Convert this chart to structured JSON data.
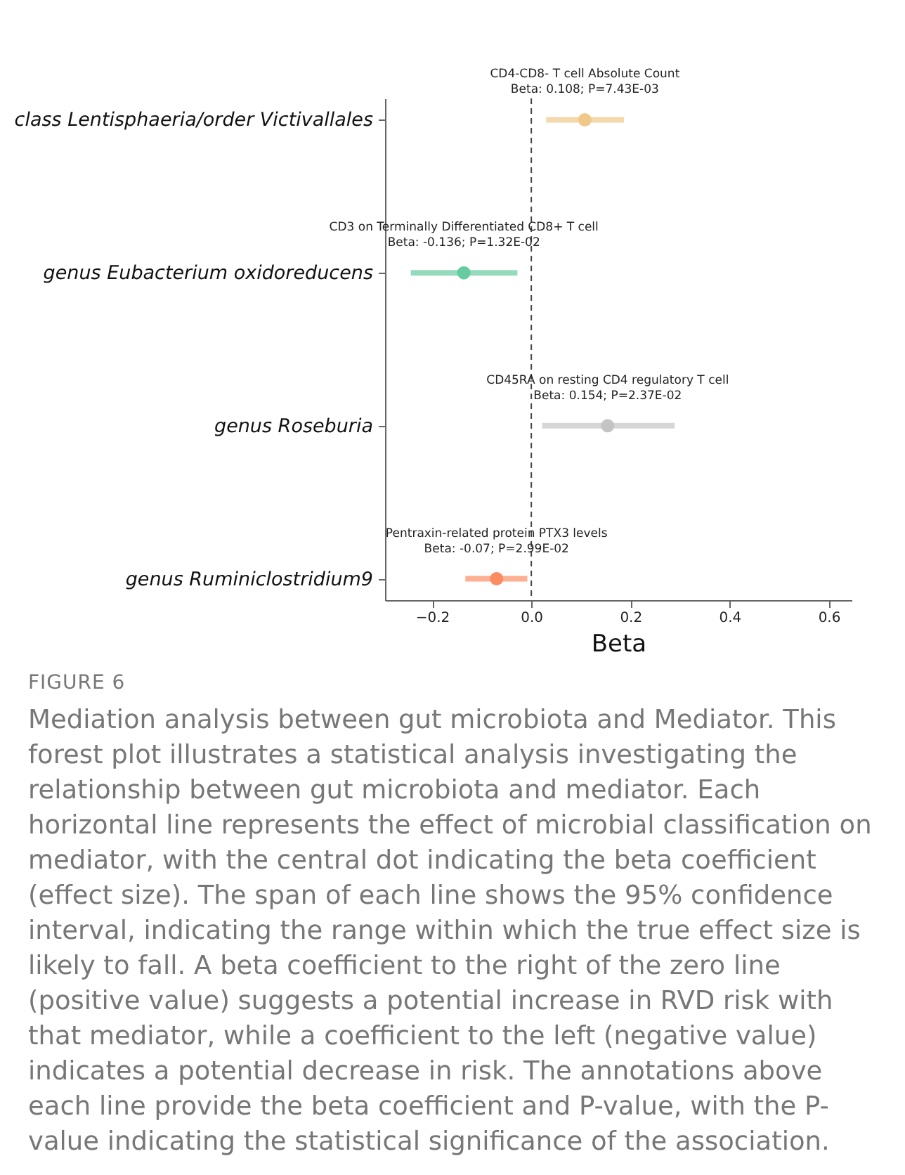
{
  "chart_data": {
    "type": "scatter",
    "categories": [
      "class Lentisphaeria/order Victivallales",
      "genus Eubacterium oxidoreducens",
      "genus Roseburia",
      "genus Ruminiclostridium9"
    ],
    "values": [
      0.108,
      -0.136,
      0.154,
      -0.07
    ],
    "errors": [
      [
        0.03,
        0.187
      ],
      [
        -0.243,
        -0.028
      ],
      [
        0.022,
        0.289
      ],
      [
        -0.133,
        -0.008
      ]
    ],
    "colors": [
      "#f0c98a",
      "#66cc9f",
      "#c4c4c4",
      "#fc8d62"
    ],
    "orientation": "horizontal",
    "xlabel": "Beta",
    "xlim": [
      -0.295,
      0.646
    ],
    "xticks": [
      {
        "value": -0.2,
        "label": "−0.2"
      },
      {
        "value": 0,
        "label": "0.0"
      },
      {
        "value": 0.2,
        "label": "0.2"
      },
      {
        "value": 0.4,
        "label": "0.4"
      },
      {
        "value": 0.6,
        "label": "0.6"
      }
    ],
    "ref_lines": [
      {
        "axis": "x",
        "value": 0,
        "line_style": "dashed",
        "color": "#444444"
      }
    ],
    "marker": "circle",
    "grid": false,
    "legend": false,
    "annotations": [
      {
        "text": "CD4-CD8- T cell Absolute Count\nBeta: 0.108;  P=7.43E-03",
        "x": 0.108,
        "y": "class Lentisphaeria/order Victivallales"
      },
      {
        "text": "CD3 on Terminally Differentiated CD8+ T cell\nBeta: -0.136;  P=1.32E-02",
        "x": -0.136,
        "y": "genus Eubacterium oxidoreducens"
      },
      {
        "text": "CD45RA on resting CD4 regulatory T cell\nBeta: 0.154;  P=2.37E-02",
        "x": 0.154,
        "y": "genus Roseburia"
      },
      {
        "text": "Pentraxin-related protein PTX3 levels\nBeta: -0.07;  P=2.99E-02",
        "x": -0.07,
        "y": "genus Ruminiclostridium9"
      },
      "FIGURE 6",
      "Mediation analysis between gut microbiota and Mediator. This forest plot illustrates a statistical analysis investigating the relationship between gut microbiota and mediator. Each horizontal line represents the effect of microbial classification on mediator, with the central dot indicating the beta coefficient (effect size). The span of each line shows the 95% confidence interval, indicating the range within which the true effect size is likely to fall. A beta coefficient to the right of the zero line (positive value) suggests a potential increase in RVD risk with that mediator, while a coefficient to the left (negative value) indicates a potential decrease in risk. The annotations above each line provide the beta coefficient and P-value, with the P-value indicating the statistical significance of the association."
    ]
  }
}
